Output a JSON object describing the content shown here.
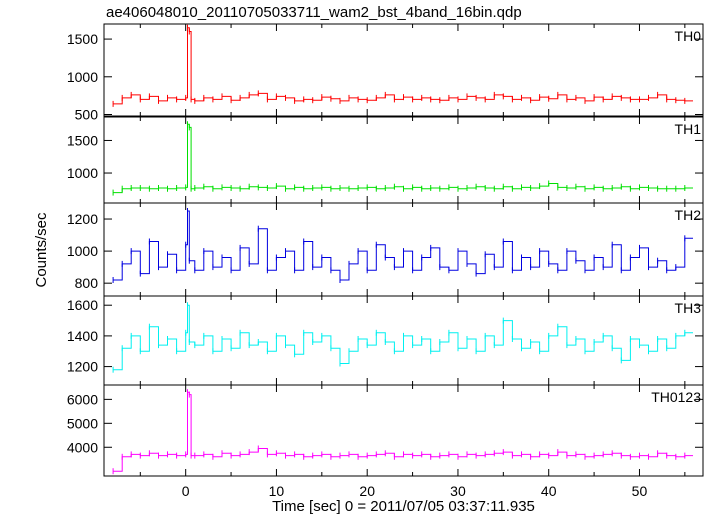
{
  "title": "ae406048010_20110705033711_wam2_bst_4band_16bin.qdp",
  "chart_data": {
    "type": "line",
    "title": "ae406048010_20110705033711_wam2_bst_4band_16bin.qdp",
    "xlabel": "Time [sec] 0 = 2011/07/05 03:37:11.935",
    "ylabel": "Counts/sec",
    "xlim": [
      -9,
      57
    ],
    "x_ticks": [
      0,
      10,
      20,
      30,
      40,
      50
    ],
    "x_tick_labels": [
      "0",
      "10",
      "20",
      "30",
      "40",
      "50"
    ],
    "grid": false,
    "legend": "none",
    "panels": [
      {
        "name": "TH0",
        "color": "#ff0000",
        "ylim": [
          480,
          1700
        ],
        "y_ticks": [
          500,
          1000,
          1500
        ],
        "y_tick_labels": [
          "500",
          "1000",
          "1500"
        ],
        "x": [
          -8,
          -7,
          -6,
          -5,
          -4,
          -3,
          -2,
          -1,
          0,
          0.2,
          0.4,
          0.6,
          1,
          2,
          3,
          4,
          5,
          6,
          7,
          8,
          9,
          10,
          11,
          12,
          13,
          14,
          15,
          16,
          17,
          18,
          19,
          20,
          21,
          22,
          23,
          24,
          25,
          26,
          27,
          28,
          29,
          30,
          31,
          32,
          33,
          34,
          35,
          36,
          37,
          38,
          39,
          40,
          41,
          42,
          43,
          44,
          45,
          46,
          47,
          48,
          49,
          50,
          51,
          52,
          53,
          54,
          55
        ],
        "values": [
          640,
          720,
          760,
          700,
          740,
          680,
          720,
          700,
          720,
          1650,
          1600,
          700,
          680,
          720,
          700,
          740,
          690,
          720,
          760,
          780,
          700,
          740,
          720,
          680,
          700,
          690,
          730,
          710,
          680,
          720,
          700,
          690,
          720,
          760,
          700,
          730,
          700,
          720,
          700,
          690,
          720,
          700,
          740,
          720,
          700,
          760,
          740,
          700,
          720,
          690,
          730,
          710,
          760,
          700,
          720,
          680,
          730,
          700,
          740,
          720,
          700,
          700,
          720,
          760,
          700,
          690,
          680
        ]
      },
      {
        "name": "TH1",
        "color": "#00e000",
        "ylim": [
          540,
          1860
        ],
        "y_ticks": [
          1000,
          1500
        ],
        "y_tick_labels": [
          "1000",
          "1500"
        ],
        "x": [
          -8,
          -7,
          -6,
          -5,
          -4,
          -3,
          -2,
          -1,
          0,
          0.2,
          0.4,
          0.6,
          1,
          2,
          3,
          4,
          5,
          6,
          7,
          8,
          9,
          10,
          11,
          12,
          13,
          14,
          15,
          16,
          17,
          18,
          19,
          20,
          21,
          22,
          23,
          24,
          25,
          26,
          27,
          28,
          29,
          30,
          31,
          32,
          33,
          34,
          35,
          36,
          37,
          38,
          39,
          40,
          41,
          42,
          43,
          44,
          45,
          46,
          47,
          48,
          49,
          50,
          51,
          52,
          53,
          54,
          55
        ],
        "values": [
          700,
          760,
          770,
          770,
          760,
          770,
          760,
          770,
          780,
          1750,
          1700,
          760,
          770,
          790,
          760,
          780,
          770,
          760,
          790,
          780,
          770,
          800,
          760,
          780,
          760,
          770,
          780,
          760,
          770,
          760,
          770,
          780,
          760,
          770,
          790,
          760,
          780,
          760,
          770,
          760,
          780,
          760,
          770,
          790,
          770,
          760,
          790,
          760,
          780,
          770,
          800,
          840,
          780,
          770,
          790,
          760,
          780,
          760,
          770,
          790,
          760,
          780,
          770,
          760,
          760,
          760,
          770
        ]
      },
      {
        "name": "TH2",
        "color": "#0000e0",
        "ylim": [
          720,
          1300
        ],
        "y_ticks": [
          800,
          1000,
          1200
        ],
        "y_tick_labels": [
          "800",
          "1000",
          "1200"
        ],
        "x": [
          -8,
          -7,
          -6,
          -5,
          -4,
          -3,
          -2,
          -1,
          0,
          0.2,
          0.4,
          1,
          2,
          3,
          4,
          5,
          6,
          7,
          8,
          9,
          10,
          11,
          12,
          13,
          14,
          15,
          16,
          17,
          18,
          19,
          20,
          21,
          22,
          23,
          24,
          25,
          26,
          27,
          28,
          29,
          30,
          31,
          32,
          33,
          34,
          35,
          36,
          37,
          38,
          39,
          40,
          41,
          42,
          43,
          44,
          45,
          46,
          47,
          48,
          49,
          50,
          51,
          52,
          53,
          54,
          55
        ],
        "values": [
          820,
          920,
          1000,
          860,
          1060,
          900,
          980,
          880,
          1040,
          1250,
          940,
          880,
          1000,
          900,
          960,
          880,
          1020,
          920,
          1140,
          880,
          960,
          1000,
          880,
          1060,
          900,
          960,
          880,
          820,
          920,
          1000,
          880,
          1040,
          960,
          900,
          1000,
          880,
          960,
          1020,
          900,
          880,
          1000,
          920,
          860,
          980,
          900,
          1060,
          880,
          960,
          900,
          1000,
          920,
          880,
          1000,
          940,
          880,
          960,
          900,
          1040,
          880,
          960,
          1020,
          900,
          940,
          880,
          900,
          1080
        ]
      },
      {
        "name": "TH3",
        "color": "#00f0f0",
        "ylim": [
          1080,
          1660
        ],
        "y_ticks": [
          1200,
          1400,
          1600
        ],
        "y_tick_labels": [
          "1200",
          "1400",
          "1600"
        ],
        "x": [
          -8,
          -7,
          -6,
          -5,
          -4,
          -3,
          -2,
          -1,
          0,
          0.2,
          0.4,
          1,
          2,
          3,
          4,
          5,
          6,
          7,
          8,
          9,
          10,
          11,
          12,
          13,
          14,
          15,
          16,
          17,
          18,
          19,
          20,
          21,
          22,
          23,
          24,
          25,
          26,
          27,
          28,
          29,
          30,
          31,
          32,
          33,
          34,
          35,
          36,
          37,
          38,
          39,
          40,
          41,
          42,
          43,
          44,
          45,
          46,
          47,
          48,
          49,
          50,
          51,
          52,
          53,
          54,
          55
        ],
        "values": [
          1180,
          1320,
          1400,
          1300,
          1460,
          1340,
          1380,
          1300,
          1420,
          1600,
          1360,
          1340,
          1400,
          1300,
          1380,
          1320,
          1420,
          1340,
          1360,
          1300,
          1400,
          1340,
          1280,
          1420,
          1360,
          1400,
          1320,
          1220,
          1300,
          1380,
          1340,
          1420,
          1360,
          1300,
          1400,
          1340,
          1380,
          1300,
          1360,
          1420,
          1320,
          1380,
          1300,
          1400,
          1340,
          1500,
          1380,
          1320,
          1360,
          1300,
          1400,
          1460,
          1340,
          1380,
          1300,
          1360,
          1400,
          1320,
          1240,
          1380,
          1340,
          1300,
          1380,
          1320,
          1400,
          1420
        ]
      },
      {
        "name": "TH0123",
        "color": "#ff00ff",
        "ylim": [
          2800,
          6600
        ],
        "y_ticks": [
          4000,
          5000,
          6000
        ],
        "y_tick_labels": [
          "4000",
          "5000",
          "6000"
        ],
        "x": [
          -8,
          -7,
          -6,
          -5,
          -4,
          -3,
          -2,
          -1,
          0,
          0.2,
          0.4,
          0.6,
          1,
          2,
          3,
          4,
          5,
          6,
          7,
          8,
          9,
          10,
          11,
          12,
          13,
          14,
          15,
          16,
          17,
          18,
          19,
          20,
          21,
          22,
          23,
          24,
          25,
          26,
          27,
          28,
          29,
          30,
          31,
          32,
          33,
          34,
          35,
          36,
          37,
          38,
          39,
          40,
          41,
          42,
          43,
          44,
          45,
          46,
          47,
          48,
          49,
          50,
          51,
          52,
          53,
          54,
          55
        ],
        "values": [
          3000,
          3600,
          3700,
          3650,
          3750,
          3650,
          3700,
          3650,
          3700,
          6300,
          6200,
          3650,
          3650,
          3700,
          3600,
          3750,
          3650,
          3700,
          3800,
          3950,
          3700,
          3750,
          3650,
          3700,
          3600,
          3650,
          3700,
          3600,
          3650,
          3700,
          3600,
          3650,
          3700,
          3750,
          3600,
          3700,
          3650,
          3700,
          3600,
          3650,
          3700,
          3600,
          3700,
          3650,
          3700,
          3750,
          3800,
          3650,
          3700,
          3600,
          3700,
          3650,
          3800,
          3650,
          3700,
          3600,
          3650,
          3700,
          3750,
          3650,
          3600,
          3650,
          3600,
          3750,
          3650,
          3600,
          3650
        ]
      }
    ]
  }
}
